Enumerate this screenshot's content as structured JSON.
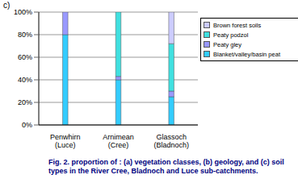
{
  "chart_data": {
    "type": "bar",
    "title": "Fig. 2. proportion of : (a) vegetation classes, (b) geology, and (c) soil types in the River Cree, Bladnoch and Luce sub-catchments.",
    "subtitle": "c)",
    "categories": [
      "Penwhirn (Luce)",
      "Arnimean (Cree)",
      "Glassoch (Bladnoch)"
    ],
    "series": [
      {
        "name": "Brown forest soils",
        "color": "#ccccff",
        "values": [
          0,
          0,
          28
        ]
      },
      {
        "name": "Peaty podzol",
        "color": "#40e0e0",
        "values": [
          0,
          57,
          42
        ]
      },
      {
        "name": "Peaty gley",
        "color": "#9999ff",
        "values": [
          20,
          3,
          5
        ]
      },
      {
        "name": "Blanket/valley/basin peat",
        "color": "#33ccff",
        "values": [
          80,
          40,
          25
        ]
      }
    ],
    "stacked": true,
    "legend": "right",
    "grid": true,
    "ylim": [
      0,
      100
    ],
    "yticks": [
      {
        "value": 0,
        "label": "0%"
      },
      {
        "value": 20,
        "label": "20%"
      },
      {
        "value": 40,
        "label": "40%"
      },
      {
        "value": 60,
        "label": "60%"
      },
      {
        "value": 80,
        "label": "80%"
      },
      {
        "value": 100,
        "label": "100%"
      }
    ]
  }
}
